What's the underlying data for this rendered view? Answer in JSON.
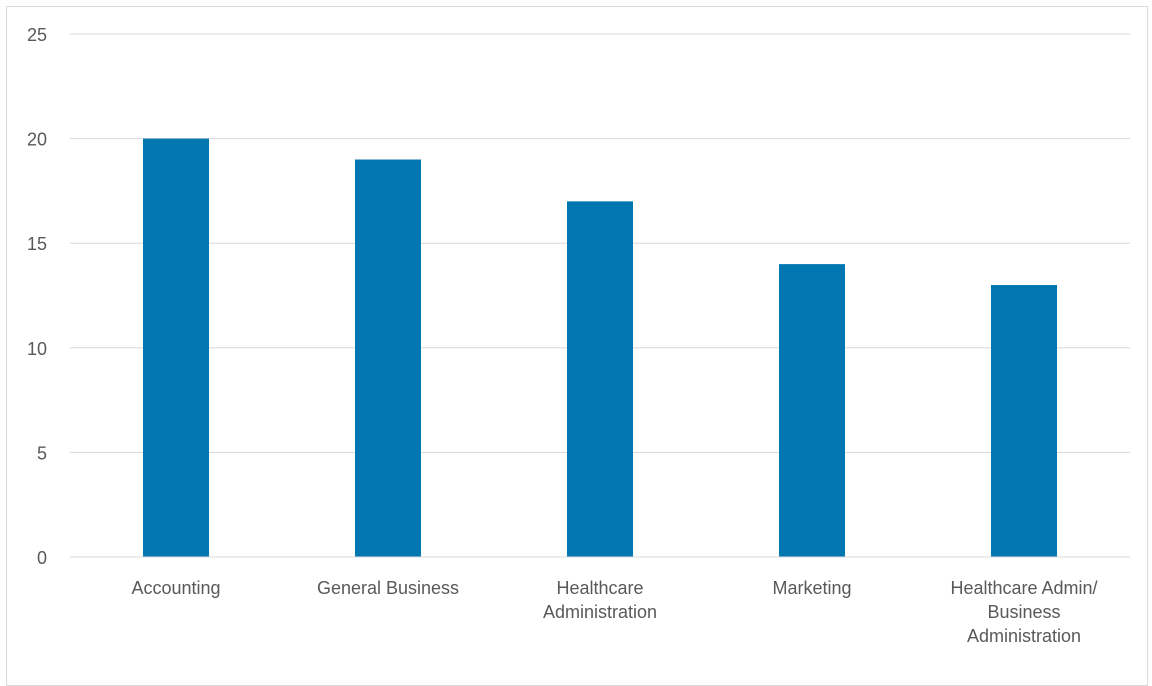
{
  "chart_data": {
    "type": "bar",
    "title": "",
    "xlabel": "",
    "ylabel": "",
    "categories": [
      [
        "Accounting"
      ],
      [
        "General Business"
      ],
      [
        "Healthcare",
        "Administration"
      ],
      [
        "Marketing"
      ],
      [
        "Healthcare Admin/",
        "Business",
        "Administration"
      ]
    ],
    "values": [
      20,
      19,
      17,
      14,
      13
    ],
    "ylim": [
      0,
      25
    ],
    "yticks": [
      0,
      5,
      10,
      15,
      20,
      25
    ],
    "grid": true,
    "legend": "none",
    "bar_color": "#0077b0"
  }
}
